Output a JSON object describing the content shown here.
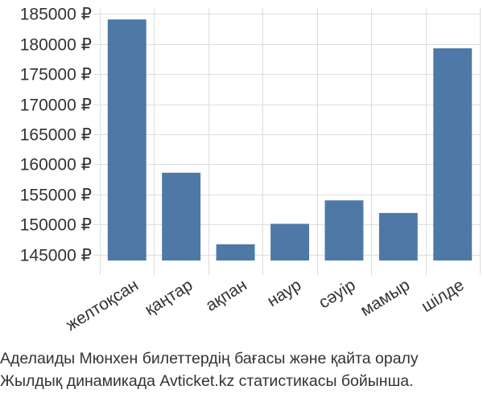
{
  "chart_data": {
    "type": "bar",
    "categories": [
      "желтоқсан",
      "қаңтар",
      "ақпан",
      "наур",
      "сәуір",
      "мамыр",
      "шілде"
    ],
    "values": [
      184100,
      158600,
      146700,
      150100,
      154000,
      151900,
      179300
    ],
    "ylim": [
      144000,
      186000
    ],
    "yticks": [
      145000,
      150000,
      155000,
      160000,
      165000,
      170000,
      175000,
      180000,
      185000
    ],
    "y_tick_labels": [
      "145000 ₽",
      "150000 ₽",
      "155000 ₽",
      "160000 ₽",
      "165000 ₽",
      "170000 ₽",
      "175000 ₽",
      "180000 ₽",
      "185000 ₽"
    ],
    "grid": true,
    "bar_color": "#4e79a7",
    "grid_color": "#dddddd",
    "caption_lines": [
      "Аделаиды Мюнхен билеттердің бағасы және қайта оралу",
      "Жылдық динамикада Avticket.kz статистикасы бойынша."
    ]
  }
}
